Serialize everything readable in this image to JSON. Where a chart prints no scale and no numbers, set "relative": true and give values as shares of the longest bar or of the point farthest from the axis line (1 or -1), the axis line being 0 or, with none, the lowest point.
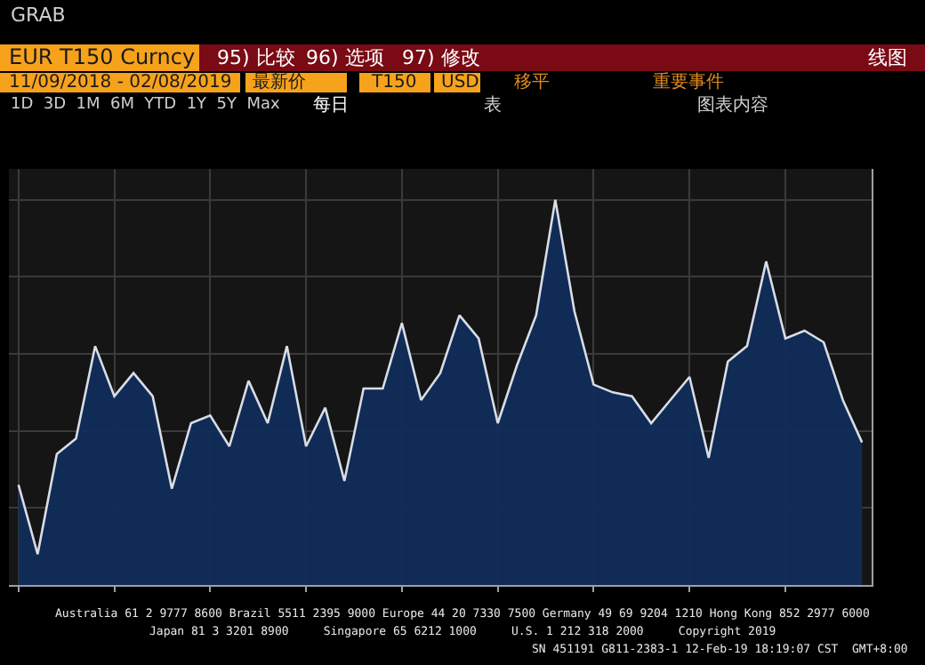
{
  "chart_data": {
    "type": "area",
    "relative": true,
    "title": "EUR T150 Curncy",
    "subtitle": "11/09/2018 - 02/08/2019",
    "categories": [
      null,
      null,
      null,
      null,
      null,
      null,
      null,
      null,
      null,
      null,
      null,
      null,
      null,
      null,
      null,
      null,
      null,
      null,
      null,
      null,
      null,
      null,
      null,
      null,
      null,
      null,
      null,
      null,
      null,
      null,
      null,
      null,
      null,
      null,
      null,
      null,
      null,
      null,
      null,
      null,
      null,
      null,
      null,
      null,
      null
    ],
    "series": [
      {
        "color": "#d8dde6",
        "values": [
          0.26,
          0.08,
          0.34,
          0.38,
          0.62,
          0.49,
          0.55,
          0.49,
          0.25,
          0.42,
          0.44,
          0.36,
          0.53,
          0.42,
          0.62,
          0.36,
          0.46,
          0.27,
          0.51,
          0.51,
          0.68,
          0.48,
          0.55,
          0.7,
          0.64,
          0.42,
          0.57,
          0.7,
          1.0,
          0.71,
          0.52,
          0.5,
          0.49,
          0.42,
          0.48,
          0.54,
          0.33,
          0.58,
          0.62,
          0.84,
          0.64,
          0.66,
          0.63,
          0.48,
          0.37
        ]
      }
    ],
    "grid": true,
    "marker": "none",
    "line_style": "solid",
    "annotations": [
      "GRAB",
      "95) 比较",
      "96) 选项",
      "97) 修改",
      "线图",
      "最新价",
      "T150",
      "USD",
      "移平",
      "重要事件",
      "1D  3D  1M  6M  YTD  1Y  5Y  Max",
      "每日",
      "表",
      "图表内容",
      "Australia 61 2 9777 8600 Brazil 5511 2395 9000 Europe 44 20 7330 7500 Germany 49 69 9204 1210 Hong Kong 852 2977 6000",
      "Japan 81 3 3201 8900     Singapore 65 6212 1000     U.S. 1 212 318 2000     Copyright 2019",
      "SN 451191 G811-2383-1 12-Feb-19 18:19:07 CST  GMT+8:00"
    ]
  }
}
